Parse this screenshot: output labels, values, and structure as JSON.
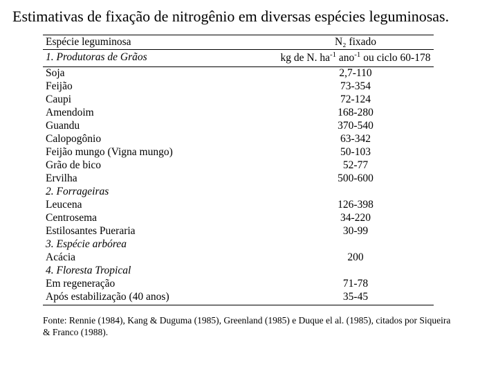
{
  "title": "Estimativas de fixação de nitrogênio em diversas espécies leguminosas.",
  "header": {
    "species_col": "Espécie leguminosa",
    "value_col": "N₂ fixado",
    "section1": "1. Produtoras de Grãos",
    "unit_html": "kg de N. ha⁻¹ ano⁻¹ ou ciclo 60-178"
  },
  "rows": [
    {
      "type": "data",
      "species": "Soja",
      "value": "2,7-110"
    },
    {
      "type": "data",
      "species": "Feijão",
      "value": "73-354"
    },
    {
      "type": "data",
      "species": "Caupi",
      "value": "72-124"
    },
    {
      "type": "data",
      "species": "Amendoim",
      "value": "168-280"
    },
    {
      "type": "data",
      "species": "Guandu",
      "value": "370-540"
    },
    {
      "type": "data",
      "species": "Calopogônio",
      "value": "63-342"
    },
    {
      "type": "data",
      "species": "Feijão mungo (Vigna mungo)",
      "value": "50-103"
    },
    {
      "type": "data",
      "species": "Grão de bico",
      "value": "52-77"
    },
    {
      "type": "data",
      "species": "Ervilha",
      "value": "500-600"
    },
    {
      "type": "section",
      "species": "2. Forrageiras",
      "value": ""
    },
    {
      "type": "data",
      "species": "Leucena",
      "value": "126-398"
    },
    {
      "type": "data",
      "species": "Centrosema",
      "value": "34-220"
    },
    {
      "type": "data",
      "species": "Estilosantes Pueraria",
      "value": "30-99"
    },
    {
      "type": "section",
      "species": "3. Espécie arbórea",
      "value": ""
    },
    {
      "type": "data",
      "species": "Acácia",
      "value": "200"
    },
    {
      "type": "section",
      "species": "4. Floresta Tropical",
      "value": ""
    },
    {
      "type": "data",
      "species": "Em regeneração",
      "value": "71-78"
    },
    {
      "type": "data",
      "species": "Após estabilização (40 anos)",
      "value": "35-45"
    }
  ],
  "source": "Fonte: Rennie (1984), Kang & Duguma (1985), Greenland (1985) e Duque el al. (1985), citados por Siqueira & Franco (1988)."
}
